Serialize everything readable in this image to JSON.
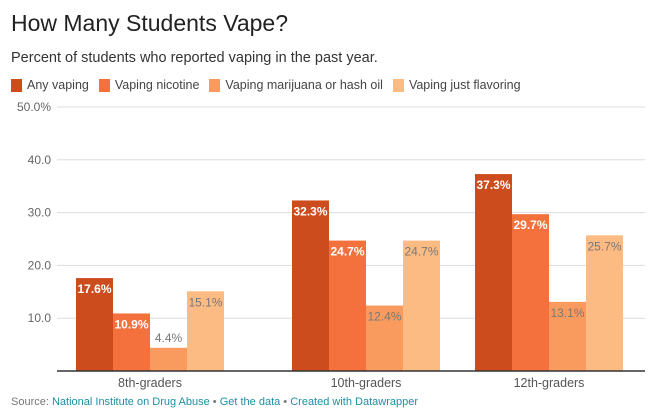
{
  "title": "How Many Students Vape?",
  "subtitle": "Percent of students who reported vaping in the past year.",
  "source": {
    "prefix": "Source: ",
    "link1": "National Institute on Drug Abuse",
    "sep": " • ",
    "link2": "Get the data",
    "link3": "Created with Datawrapper"
  },
  "chart_data": {
    "type": "bar",
    "categories": [
      "8th-graders",
      "10th-graders",
      "12th-graders"
    ],
    "series": [
      {
        "name": "Any vaping",
        "color": "#cc4c1d",
        "values": [
          17.6,
          32.3,
          37.3
        ],
        "labels": [
          "17.6%",
          "32.3%",
          "37.3%"
        ]
      },
      {
        "name": "Vaping nicotine",
        "color": "#f4703d",
        "values": [
          10.9,
          24.7,
          29.7
        ],
        "labels": [
          "10.9%",
          "24.7%",
          "29.7%"
        ]
      },
      {
        "name": "Vaping marijuana or hash oil",
        "color": "#f99b5e",
        "values": [
          4.4,
          12.4,
          13.1
        ],
        "labels": [
          "4.4%",
          "12.4%",
          "13.1%"
        ]
      },
      {
        "name": "Vaping just flavoring",
        "color": "#fdbb84",
        "values": [
          15.1,
          24.7,
          25.7
        ],
        "labels": [
          "15.1%",
          "24.7%",
          "25.7%"
        ]
      }
    ],
    "yticks": [
      10,
      20,
      30,
      40,
      50
    ],
    "ytick_labels": [
      "10.0",
      "20.0",
      "30.0",
      "40.0",
      "50.0%"
    ],
    "ylim": [
      0,
      50
    ],
    "grid": true,
    "legend": "top-left"
  }
}
